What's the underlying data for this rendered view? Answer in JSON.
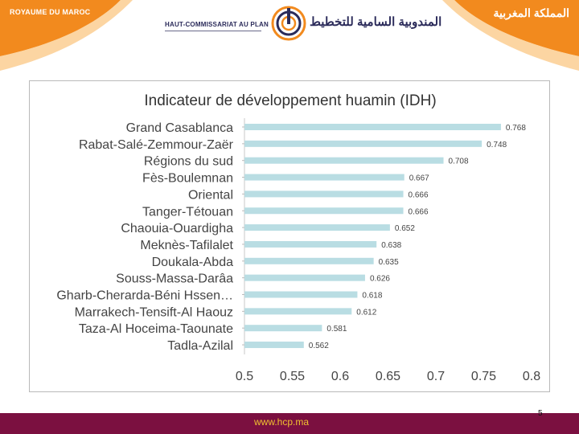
{
  "header": {
    "kingdom_fr": "ROYAUME DU MAROC",
    "kingdom_ar": "المملكة المغربية",
    "org_fr": "HAUT-COMMISSARIAT AU PLAN",
    "org_ar": "المندوبية السامية للتخطيط",
    "logo_icon": "hcp-logo-icon",
    "colors": {
      "orange": "#f28a1e",
      "orange_light": "#fbc37a",
      "navy": "#2b2b5a"
    }
  },
  "footer": {
    "url": "www.hcp.ma",
    "page_number": "5",
    "bar_color": "#7b1040",
    "url_color": "#f0c030"
  },
  "chart_data": {
    "type": "bar",
    "orientation": "horizontal",
    "title": "Indicateur de développement huamin (IDH)",
    "categories": [
      "Grand Casablanca",
      "Rabat-Salé-Zemmour-Zaër",
      "Régions du sud",
      "Fès-Boulemnan",
      "Oriental",
      "Tanger-Tétouan",
      "Chaouia-Ouardigha",
      "Meknès-Tafilalet",
      "Doukala-Abda",
      "Souss-Massa-Darâa",
      "Gharb-Cherarda-Béni Hssen…",
      "Marrakech-Tensift-Al Haouz",
      "Taza-Al Hoceima-Taounate",
      "Tadla-Azilal"
    ],
    "values": [
      0.768,
      0.748,
      0.708,
      0.667,
      0.666,
      0.666,
      0.652,
      0.638,
      0.635,
      0.626,
      0.618,
      0.612,
      0.581,
      0.562
    ],
    "data_labels": [
      "0.768",
      "0.748",
      "0.708",
      "0.667",
      "0.666",
      "0.666",
      "0.652",
      "0.638",
      "0.635",
      "0.626",
      "0.618",
      "0.612",
      "0.581",
      "0.562"
    ],
    "xlim": [
      0.5,
      0.8
    ],
    "xticks": [
      "0.5",
      "0.55",
      "0.6",
      "0.65",
      "0.7",
      "0.75",
      "0.8"
    ],
    "xtick_values": [
      0.5,
      0.55,
      0.6,
      0.65,
      0.7,
      0.75,
      0.8
    ],
    "grid": false,
    "legend": "none",
    "bar_color": "#b9dde3",
    "text_color": "#444444"
  }
}
